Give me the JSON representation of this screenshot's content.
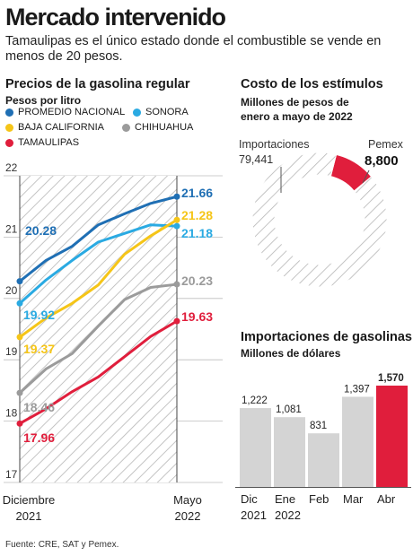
{
  "header": {
    "title": "Mercado intervenido",
    "subtitle": "Tamaulipas es el único estado donde el combustible se vende en menos de 20 pesos."
  },
  "source": "Fuente: CRE, SAT y Pemex.",
  "colors": {
    "promedio": "#1f6fb4",
    "sonora": "#2aaae2",
    "baja": "#f5c518",
    "chihuahua": "#9b9b9b",
    "tamaulipas": "#e01e3c",
    "gray": "#d4d4d4",
    "hatch": "#b5b5b5"
  },
  "chart_data": [
    {
      "type": "line",
      "title": "Precios de la gasolina regular",
      "subtitle": "Pesos por litro",
      "x_labels": [
        [
          "Diciembre",
          "2021"
        ],
        [
          "Mayo",
          "2022"
        ]
      ],
      "x": [
        0,
        1,
        2,
        3,
        4,
        5,
        6
      ],
      "ylim": [
        17,
        22
      ],
      "yticks": [
        17,
        18,
        19,
        20,
        21,
        22
      ],
      "legend": "top",
      "series": [
        {
          "key": "promedio",
          "name": "PROMEDIO NACIONAL",
          "values": [
            20.28,
            20.62,
            20.85,
            21.2,
            21.38,
            21.55,
            21.66
          ],
          "start_label": "20.28",
          "end_label": "21.66"
        },
        {
          "key": "sonora",
          "name": "SONORA",
          "values": [
            19.92,
            20.3,
            20.62,
            20.92,
            21.06,
            21.2,
            21.18
          ],
          "start_label": "19.92",
          "end_label": "21.18"
        },
        {
          "key": "baja",
          "name": "BAJA CALIFORNIA",
          "values": [
            19.37,
            19.68,
            19.92,
            20.22,
            20.72,
            21.02,
            21.28
          ],
          "start_label": "19.37",
          "end_label": "21.28"
        },
        {
          "key": "chihuahua",
          "name": "CHIHUAHUA",
          "values": [
            18.46,
            18.85,
            19.1,
            19.55,
            19.98,
            20.18,
            20.23
          ],
          "start_label": "18.46",
          "end_label": "20.23"
        },
        {
          "key": "tamaulipas",
          "name": "TAMAULIPAS",
          "values": [
            17.96,
            18.2,
            18.48,
            18.72,
            19.05,
            19.38,
            19.63
          ],
          "start_label": "17.96",
          "end_label": "19.63"
        }
      ]
    },
    {
      "type": "pie",
      "title": "Costo de los estímulos",
      "subtitle": "Millones de pesos de enero a mayo de 2022",
      "slices": [
        {
          "key": "importaciones",
          "label": "Importaciones",
          "value": 79441,
          "value_label": "79,441"
        },
        {
          "key": "pemex",
          "label": "Pemex",
          "value": 8800,
          "value_label": "8,800"
        }
      ]
    },
    {
      "type": "bar",
      "title": "Importaciones de gasolinas",
      "subtitle": "Millones de dólares",
      "categories": [
        [
          "Dic",
          "2021"
        ],
        [
          "Ene",
          "2022"
        ],
        [
          "Feb",
          ""
        ],
        [
          "Mar",
          ""
        ],
        [
          "Abr",
          ""
        ]
      ],
      "values": [
        1222,
        1081,
        831,
        1397,
        1570
      ],
      "value_labels": [
        "1,222",
        "1,081",
        "831",
        "1,397",
        "1,570"
      ],
      "highlight_index": 4
    }
  ]
}
